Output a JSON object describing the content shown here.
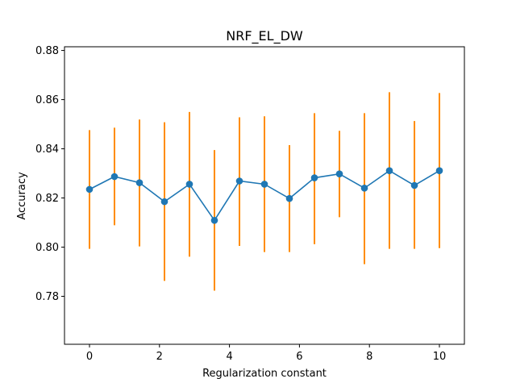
{
  "chart_data": {
    "type": "line",
    "title": "NRF_EL_DW",
    "xlabel": "Regularization constant",
    "ylabel": "Accuracy",
    "xlim": [
      -0.714,
      10.714
    ],
    "ylim": [
      0.7605,
      0.8815
    ],
    "xticks": [
      0,
      2,
      4,
      6,
      8,
      10
    ],
    "xtick_labels": [
      "0",
      "2",
      "4",
      "6",
      "8",
      "10"
    ],
    "yticks": [
      0.78,
      0.8,
      0.82,
      0.84,
      0.86,
      0.88
    ],
    "ytick_labels": [
      "0.78",
      "0.80",
      "0.82",
      "0.84",
      "0.86",
      "0.88"
    ],
    "grid": false,
    "legend": false,
    "series": [
      {
        "x": [
          0,
          0.714,
          1.429,
          2.143,
          2.857,
          3.571,
          4.286,
          5.0,
          5.714,
          6.429,
          7.143,
          7.857,
          8.571,
          9.286,
          10.0
        ],
        "y": [
          0.8235,
          0.8287,
          0.8262,
          0.8185,
          0.8256,
          0.8109,
          0.8269,
          0.8256,
          0.8198,
          0.8282,
          0.8298,
          0.824,
          0.8311,
          0.8251,
          0.8311
        ],
        "yerr_low": [
          0.7993,
          0.8089,
          0.8003,
          0.7863,
          0.7961,
          0.7823,
          0.8005,
          0.798,
          0.798,
          0.8012,
          0.8122,
          0.7931,
          0.7993,
          0.7993,
          0.7996
        ],
        "yerr_high": [
          0.8476,
          0.8486,
          0.8519,
          0.8508,
          0.855,
          0.8395,
          0.8528,
          0.8532,
          0.8415,
          0.8545,
          0.8473,
          0.8545,
          0.863,
          0.8513,
          0.8627
        ],
        "line_color": "#1f77b4",
        "errorbar_color": "#ff8c00"
      }
    ]
  }
}
